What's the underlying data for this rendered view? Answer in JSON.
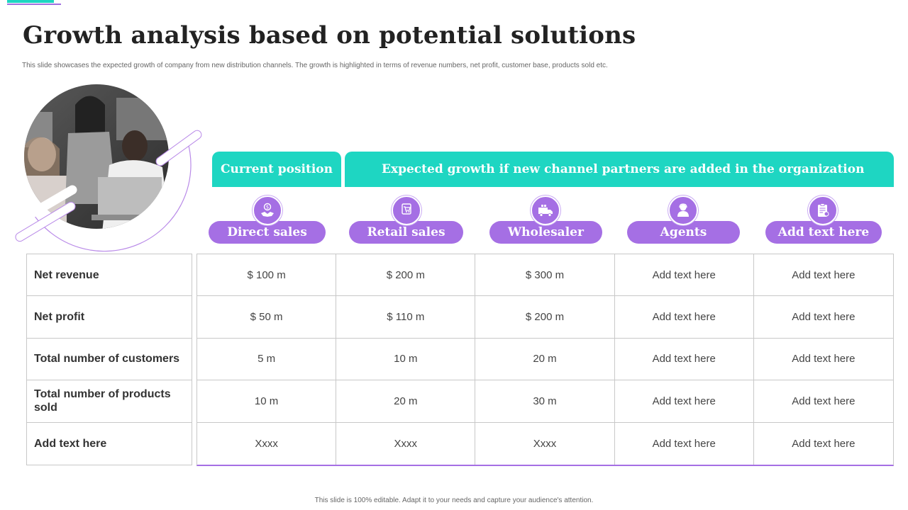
{
  "slide": {
    "title": "Growth analysis based on potential solutions",
    "subtitle": "This slide showcases the expected growth of company from new distribution channels. The growth is highlighted in terms of revenue numbers, net profit, customer base, products sold etc.",
    "footer": "This slide is 100% editable. Adapt it to your needs and capture your audience's attention."
  },
  "colors": {
    "teal": "#1ed6c2",
    "purple": "#a56fe4"
  },
  "headers": {
    "current": "Current position",
    "expected": "Expected growth if new channel partners are added in the organization"
  },
  "channels": [
    {
      "label": "Direct sales",
      "icon": "handshake-dollar-icon"
    },
    {
      "label": "Retail sales",
      "icon": "shopping-cart-icon"
    },
    {
      "label": "Wholesaler",
      "icon": "truck-icon"
    },
    {
      "label": "Agents",
      "icon": "agent-person-icon"
    },
    {
      "label": "Add text here",
      "icon": "clipboard-gear-icon"
    }
  ],
  "rows": [
    {
      "label": "Net revenue",
      "cells": [
        "$ 100 m",
        "$ 200 m",
        "$ 300 m",
        "Add text here",
        "Add text here"
      ]
    },
    {
      "label": "Net profit",
      "cells": [
        "$ 50 m",
        "$ 110 m",
        "$ 200 m",
        "Add text here",
        "Add text here"
      ]
    },
    {
      "label": "Total number of customers",
      "cells": [
        "5 m",
        "10 m",
        "20 m",
        "Add text here",
        "Add text here"
      ]
    },
    {
      "label": "Total number of products sold",
      "cells": [
        "10 m",
        "20 m",
        "30 m",
        "Add text here",
        "Add text here"
      ]
    },
    {
      "label": "Add text here",
      "cells": [
        "Xxxx",
        "Xxxx",
        "Xxxx",
        "Add text here",
        "Add text here"
      ]
    }
  ]
}
